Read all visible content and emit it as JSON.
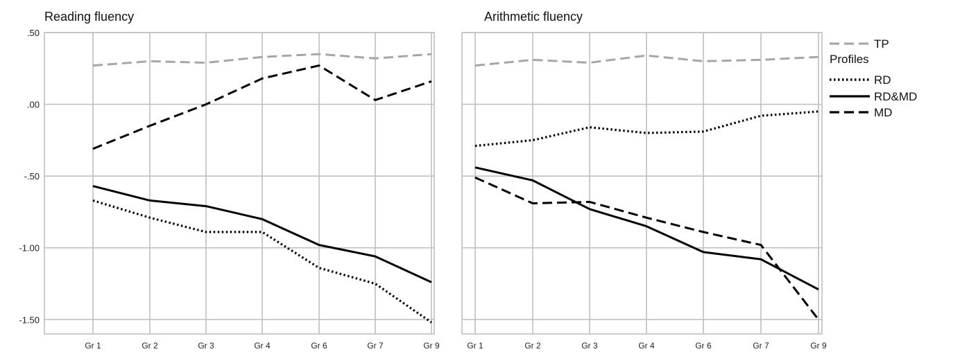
{
  "chart_data": [
    {
      "type": "line",
      "title": "Reading fluency",
      "categories": [
        "Gr 1",
        "Gr 2",
        "Gr 3",
        "Gr 4",
        "Gr 6",
        "Gr 7",
        "Gr 9"
      ],
      "ylim": [
        -1.6,
        0.5
      ],
      "yticks": [
        0.5,
        0,
        -0.5,
        -1,
        -1.5
      ],
      "ytick_labels": [
        ".50",
        ".00",
        "-.50",
        "-1.00",
        "-1.50"
      ],
      "grid": true,
      "series": [
        {
          "name": "TP",
          "values": [
            0.27,
            0.3,
            0.29,
            0.33,
            0.35,
            0.32,
            0.35
          ]
        },
        {
          "name": "RD",
          "values": [
            -0.67,
            -0.79,
            -0.89,
            -0.89,
            -1.14,
            -1.25,
            -1.52
          ]
        },
        {
          "name": "RD&MD",
          "values": [
            -0.57,
            -0.67,
            -0.71,
            -0.8,
            -0.98,
            -1.06,
            -1.24
          ]
        },
        {
          "name": "MD",
          "values": [
            -0.31,
            -0.15,
            0.0,
            0.18,
            0.27,
            0.03,
            0.16
          ]
        }
      ]
    },
    {
      "type": "line",
      "title": "Arithmetic fluency",
      "categories": [
        "Gr 1",
        "Gr 2",
        "Gr 3",
        "Gr 4",
        "Gr 6",
        "Gr 7",
        "Gr 9"
      ],
      "ylim": [
        -1.6,
        0.5
      ],
      "grid": true,
      "series": [
        {
          "name": "TP",
          "values": [
            0.27,
            0.31,
            0.29,
            0.34,
            0.3,
            0.31,
            0.33
          ]
        },
        {
          "name": "RD",
          "values": [
            -0.29,
            -0.25,
            -0.16,
            -0.2,
            -0.19,
            -0.08,
            -0.05
          ]
        },
        {
          "name": "RD&MD",
          "values": [
            -0.44,
            -0.53,
            -0.73,
            -0.85,
            -1.03,
            -1.08,
            -1.29
          ]
        },
        {
          "name": "MD",
          "values": [
            -0.51,
            -0.69,
            -0.68,
            -0.79,
            -0.89,
            -0.98,
            -1.5
          ]
        }
      ]
    }
  ],
  "legend": {
    "placement": "right",
    "title": "Profiles",
    "items": [
      {
        "name": "TP",
        "color": "#a6a6a6",
        "dash": "dashed"
      },
      {
        "name": "RD",
        "color": "#000000",
        "dash": "dotted"
      },
      {
        "name": "RD&MD",
        "color": "#000000",
        "dash": "solid"
      },
      {
        "name": "MD",
        "color": "#000000",
        "dash": "dashed"
      }
    ]
  },
  "styles": {
    "TP": {
      "color": "#a6a6a6",
      "dash": "dashed"
    },
    "RD": {
      "color": "#000000",
      "dash": "dotted"
    },
    "RD&MD": {
      "color": "#000000",
      "dash": "solid"
    },
    "MD": {
      "color": "#000000",
      "dash": "dashed"
    }
  },
  "grid_color": "#bfbfbf"
}
